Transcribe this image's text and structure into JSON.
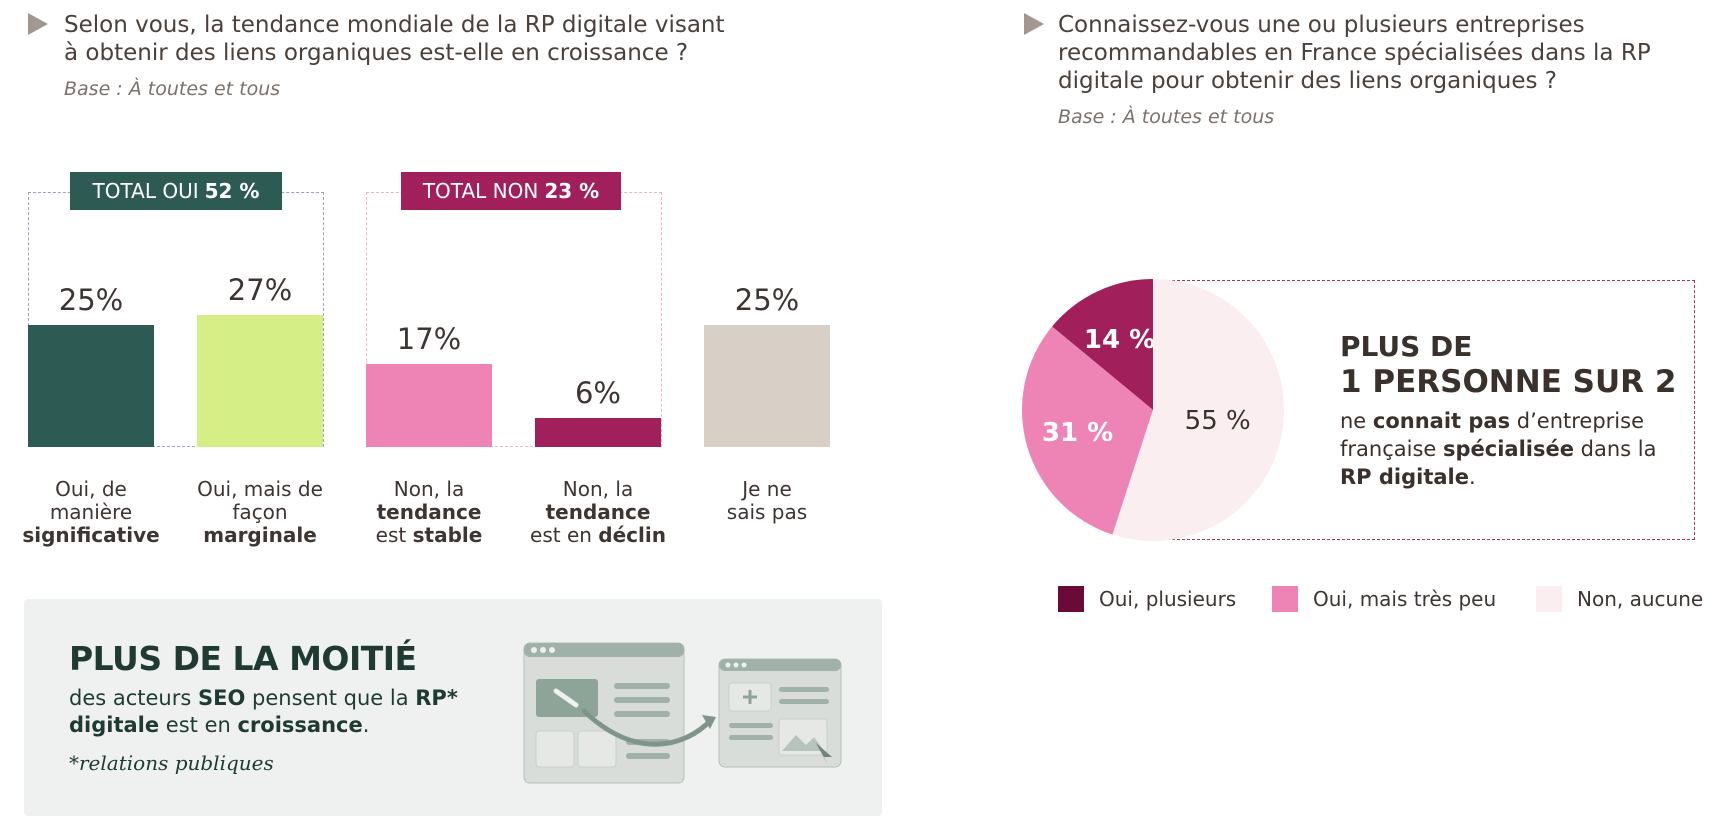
{
  "left_question": {
    "line1": "Selon vous, la tendance mondiale de la RP digitale visant",
    "line2": "à obtenir des liens organiques est-elle en croissance ?",
    "base": "Base : À toutes et tous"
  },
  "right_question": {
    "line1": "Connaissez-vous une ou plusieurs entreprises",
    "line2": "recommandables en France spécialisées dans la RP",
    "line3": "digitale pour obtenir des liens organiques  ?",
    "base": "Base : À toutes et tous"
  },
  "totals": {
    "oui_label": "TOTAL OUI",
    "oui_value": "52 %",
    "non_label": "TOTAL NON",
    "non_value": "23 %"
  },
  "callout": {
    "title": "PLUS DE LA MOITIÉ",
    "t1": "des acteurs ",
    "t2": "SEO",
    "t3": " pensent que la ",
    "t4": "RP* digitale",
    "t5": " est en ",
    "t6": "croissance",
    "t7": ".",
    "note": "*relations publiques"
  },
  "pie_callout": {
    "head1": "PLUS DE",
    "head2": "1 PERSONNE SUR 2",
    "t1": "ne ",
    "t2": "connait pas",
    "t3": " d’entreprise française ",
    "t4": "spécialisée",
    "t5": " dans la ",
    "t6": "RP digitale",
    "t7": "."
  },
  "colors": {
    "dark_green": "#2d5a52",
    "lime": "#d6ee86",
    "pink": "#ee84b5",
    "magenta": "#a11f5b",
    "beige": "#d8cfc6",
    "plum": "#6a0a36",
    "pale_pink": "#fbeef0"
  },
  "chart_data": [
    {
      "type": "bar",
      "categories": [
        "Oui, de manière significative",
        "Oui, mais de façon marginale",
        "Non, la tendance est stable",
        "Non, la tendance est en déclin",
        "Je ne sais pas"
      ],
      "category_lines": [
        [
          {
            "t": "Oui, de",
            "b": false
          },
          {
            "t": "manière",
            "b": false
          },
          {
            "t": "significative",
            "b": true
          }
        ],
        [
          {
            "t": "Oui, mais de",
            "b": false
          },
          {
            "t": "façon",
            "b": false
          },
          {
            "t": "marginale",
            "b": true
          }
        ],
        [
          {
            "t": "Non, la",
            "b": false
          },
          {
            "t": "tendance",
            "b": true
          },
          {
            "t": "est ",
            "b": false,
            "t2": "stable"
          }
        ],
        [
          {
            "t": "Non, la",
            "b": false
          },
          {
            "t": "tendance",
            "b": true
          },
          {
            "t": "est en ",
            "b": false,
            "t2": "déclin"
          }
        ],
        [
          {
            "t": "Je ne",
            "b": false
          },
          {
            "t": "sais pas",
            "b": false
          }
        ]
      ],
      "values": [
        25,
        27,
        17,
        6,
        25
      ],
      "value_labels": [
        "25%",
        "27%",
        "17%",
        "6%",
        "25%"
      ],
      "colors": [
        "#2d5a52",
        "#d6ee86",
        "#ee84b5",
        "#a11f5b",
        "#d8cfc6"
      ],
      "ylim": [
        0,
        27
      ]
    },
    {
      "type": "pie",
      "labels": [
        "Oui, plusieurs",
        "Oui, mais très peu",
        "Non, aucune"
      ],
      "values": [
        14,
        31,
        55
      ],
      "value_labels": [
        "14 %",
        "31 %",
        "55 %"
      ],
      "colors": [
        "#a11f5b",
        "#ee84b5",
        "#fbeef0"
      ],
      "legend_colors": [
        "#6a0a36",
        "#ee84b5",
        "#fbeef0"
      ],
      "legend": "bottom"
    }
  ]
}
